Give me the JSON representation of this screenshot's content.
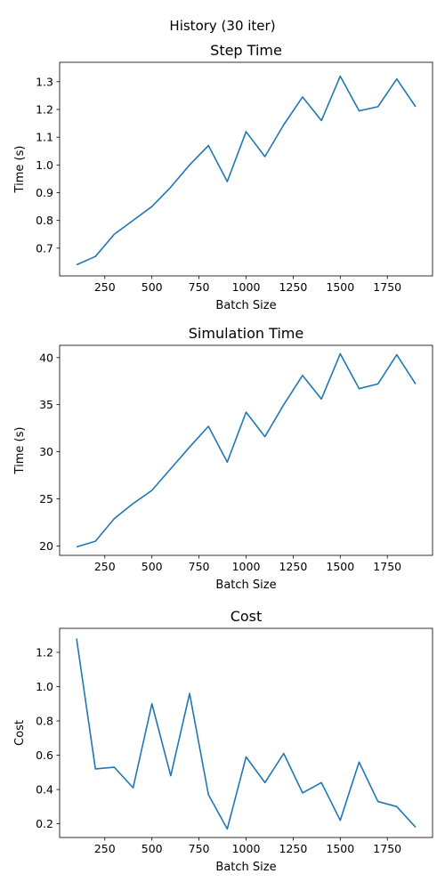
{
  "figure": {
    "suptitle": "History (30 iter)"
  },
  "chart_data": [
    {
      "type": "line",
      "title": "Step Time",
      "xlabel": "Batch Size",
      "ylabel": "Time (s)",
      "xlim": [
        10,
        1990
      ],
      "ylim": [
        0.6,
        1.37
      ],
      "xticks": [
        250,
        500,
        750,
        1000,
        1250,
        1500,
        1750
      ],
      "xtick_labels": [
        "250",
        "500",
        "750",
        "1000",
        "1250",
        "1500",
        "1750"
      ],
      "yticks": [
        0.7,
        0.8,
        0.9,
        1.0,
        1.1,
        1.2,
        1.3
      ],
      "ytick_labels": [
        "0.7",
        "0.8",
        "0.9",
        "1.0",
        "1.1",
        "1.2",
        "1.3"
      ],
      "grid": false,
      "color": "#1f77b4",
      "x": [
        100,
        200,
        300,
        400,
        500,
        600,
        700,
        800,
        900,
        1000,
        1100,
        1200,
        1300,
        1400,
        1500,
        1600,
        1700,
        1800,
        1900
      ],
      "y": [
        0.64,
        0.67,
        0.75,
        0.8,
        0.85,
        0.92,
        1.0,
        1.07,
        0.94,
        1.12,
        1.03,
        1.145,
        1.245,
        1.16,
        1.32,
        1.195,
        1.21,
        1.31,
        1.21
      ]
    },
    {
      "type": "line",
      "title": "Simulation Time",
      "xlabel": "Batch Size",
      "ylabel": "Time (s)",
      "xlim": [
        10,
        1990
      ],
      "ylim": [
        19,
        41.3
      ],
      "xticks": [
        250,
        500,
        750,
        1000,
        1250,
        1500,
        1750
      ],
      "xtick_labels": [
        "250",
        "500",
        "750",
        "1000",
        "1250",
        "1500",
        "1750"
      ],
      "yticks": [
        20,
        25,
        30,
        35,
        40
      ],
      "ytick_labels": [
        "20",
        "25",
        "30",
        "35",
        "40"
      ],
      "grid": false,
      "color": "#1f77b4",
      "x": [
        100,
        200,
        300,
        400,
        500,
        600,
        700,
        800,
        900,
        1000,
        1100,
        1200,
        1300,
        1400,
        1500,
        1600,
        1700,
        1800,
        1900
      ],
      "y": [
        19.9,
        20.5,
        22.9,
        24.5,
        25.9,
        28.2,
        30.5,
        32.7,
        28.9,
        34.2,
        31.6,
        35.0,
        38.1,
        35.6,
        40.4,
        36.7,
        37.2,
        40.3,
        37.2
      ]
    },
    {
      "type": "line",
      "title": "Cost",
      "xlabel": "Batch Size",
      "ylabel": "Cost",
      "xlim": [
        10,
        1990
      ],
      "ylim": [
        0.12,
        1.34
      ],
      "xticks": [
        250,
        500,
        750,
        1000,
        1250,
        1500,
        1750
      ],
      "xtick_labels": [
        "250",
        "500",
        "750",
        "1000",
        "1250",
        "1500",
        "1750"
      ],
      "yticks": [
        0.2,
        0.4,
        0.6,
        0.8,
        1.0,
        1.2
      ],
      "ytick_labels": [
        "0.2",
        "0.4",
        "0.6",
        "0.8",
        "1.0",
        "1.2"
      ],
      "grid": false,
      "color": "#1f77b4",
      "x": [
        100,
        200,
        300,
        400,
        500,
        600,
        700,
        800,
        900,
        1000,
        1100,
        1200,
        1300,
        1400,
        1500,
        1600,
        1700,
        1800,
        1900
      ],
      "y": [
        1.28,
        0.52,
        0.53,
        0.41,
        0.9,
        0.48,
        0.96,
        0.37,
        0.17,
        0.59,
        0.44,
        0.61,
        0.38,
        0.44,
        0.22,
        0.56,
        0.33,
        0.3,
        0.18
      ]
    }
  ]
}
